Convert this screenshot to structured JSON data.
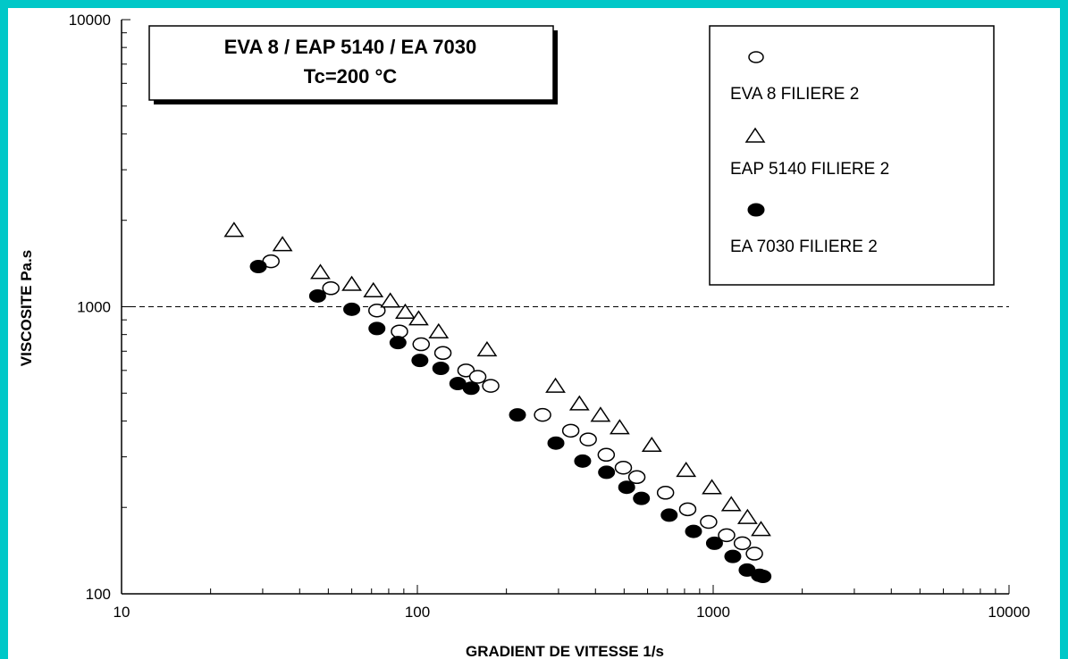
{
  "chart_data": {
    "type": "scatter",
    "title_lines": [
      "EVA 8 / EAP 5140 / EA 7030",
      "Tc=200 °C"
    ],
    "xlabel": "GRADIENT DE VITESSE 1/s",
    "ylabel": "VISCOSITE Pa.s",
    "x_scale": "log",
    "y_scale": "log",
    "xlim": [
      10,
      10000
    ],
    "ylim": [
      100,
      10000
    ],
    "x_ticks": [
      "10",
      "100",
      "1000",
      "10000"
    ],
    "y_ticks": [
      "100",
      "1000",
      "10000"
    ],
    "reference_line_y": 1000,
    "legend_position": "top-right",
    "series": [
      {
        "name": "EVA 8 FILIERE 2",
        "marker": "open-circle",
        "points": [
          [
            32,
            1440
          ],
          [
            51,
            1160
          ],
          [
            73,
            970
          ],
          [
            87,
            820
          ],
          [
            103,
            740
          ],
          [
            122,
            690
          ],
          [
            146,
            600
          ],
          [
            160,
            570
          ],
          [
            177,
            530
          ],
          [
            265,
            420
          ],
          [
            330,
            370
          ],
          [
            378,
            345
          ],
          [
            435,
            305
          ],
          [
            497,
            275
          ],
          [
            552,
            255
          ],
          [
            690,
            225
          ],
          [
            820,
            197
          ],
          [
            965,
            178
          ],
          [
            1110,
            160
          ],
          [
            1255,
            150
          ],
          [
            1378,
            138
          ]
        ]
      },
      {
        "name": "EAP 5140 FILIERE 2",
        "marker": "open-triangle",
        "points": [
          [
            24,
            1850
          ],
          [
            35,
            1650
          ],
          [
            47,
            1320
          ],
          [
            60,
            1200
          ],
          [
            71,
            1140
          ],
          [
            81,
            1050
          ],
          [
            91,
            960
          ],
          [
            101,
            910
          ],
          [
            118,
            820
          ],
          [
            172,
            710
          ],
          [
            293,
            530
          ],
          [
            353,
            460
          ],
          [
            416,
            420
          ],
          [
            483,
            380
          ],
          [
            620,
            330
          ],
          [
            810,
            270
          ],
          [
            990,
            235
          ],
          [
            1151,
            205
          ],
          [
            1306,
            185
          ],
          [
            1451,
            168
          ]
        ]
      },
      {
        "name": "EA 7030 FILIERE 2",
        "marker": "filled-circle",
        "points": [
          [
            29,
            1380
          ],
          [
            46,
            1090
          ],
          [
            60,
            980
          ],
          [
            73,
            840
          ],
          [
            86,
            750
          ],
          [
            102,
            650
          ],
          [
            120,
            610
          ],
          [
            137,
            540
          ],
          [
            152,
            520
          ],
          [
            218,
            420
          ],
          [
            294,
            335
          ],
          [
            362,
            290
          ],
          [
            436,
            265
          ],
          [
            510,
            235
          ],
          [
            572,
            215
          ],
          [
            710,
            188
          ],
          [
            858,
            165
          ],
          [
            1010,
            150
          ],
          [
            1165,
            135
          ],
          [
            1302,
            121
          ],
          [
            1433,
            116
          ],
          [
            1473,
            115
          ]
        ]
      }
    ]
  }
}
